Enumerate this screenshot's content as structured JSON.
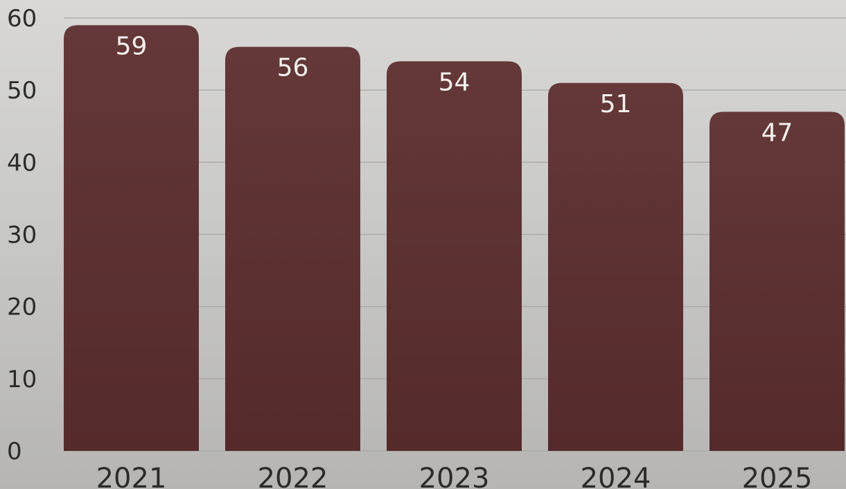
{
  "chart_data": {
    "type": "bar",
    "categories": [
      "2021",
      "2022",
      "2023",
      "2024",
      "2025"
    ],
    "values": [
      59,
      56,
      54,
      51,
      47
    ],
    "title": "",
    "xlabel": "",
    "ylabel": "",
    "ylim": [
      0,
      60
    ],
    "yticks": [
      0,
      10,
      20,
      30,
      40,
      50,
      60
    ],
    "grid": true,
    "bar_color": "#5c2e2e",
    "bar_color_top": "#643838",
    "bar_color_bottom": "#552a2a",
    "data_labels": true
  }
}
